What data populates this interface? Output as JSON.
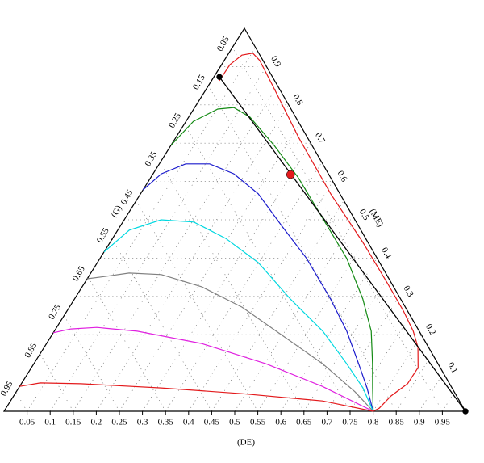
{
  "chart_data": {
    "type": "ternary",
    "axis_labels": {
      "bottom": "(DE)",
      "left": "(G)",
      "right": "(ME)"
    },
    "bottom_ticks": [
      0.05,
      0.1,
      0.15,
      0.2,
      0.25,
      0.3,
      0.35,
      0.4,
      0.45,
      0.5,
      0.55,
      0.6,
      0.65,
      0.7,
      0.75,
      0.8,
      0.85,
      0.9,
      0.95
    ],
    "left_ticks": [
      0.05,
      0.15,
      0.25,
      0.35,
      0.45,
      0.55,
      0.65,
      0.75,
      0.85,
      0.95
    ],
    "right_ticks": [
      0.1,
      0.2,
      0.3,
      0.4,
      0.5,
      0.6,
      0.7,
      0.8,
      0.9
    ],
    "grid": true,
    "series": [
      {
        "color": "#e31a1c",
        "de": [
          0.017,
          0.018,
          0.031,
          0.052,
          0.077,
          0.147,
          0.266,
          0.412,
          0.548,
          0.656,
          0.729,
          0.778,
          0.81,
          0.838,
          0.837,
          0.818,
          0.809,
          0.8
        ],
        "me": [
          0.863,
          0.905,
          0.93,
          0.935,
          0.916,
          0.842,
          0.715,
          0.568,
          0.441,
          0.335,
          0.262,
          0.209,
          0.167,
          0.114,
          0.072,
          0.04,
          0.008,
          0
        ]
      },
      {
        "color": "#138a13",
        "de": [
          0,
          0.016,
          0.052,
          0.085,
          0.133,
          0.224,
          0.32,
          0.428,
          0.535,
          0.625,
          0.687,
          0.734,
          0.767,
          0.8
        ],
        "me": [
          0.694,
          0.757,
          0.789,
          0.793,
          0.768,
          0.694,
          0.61,
          0.504,
          0.399,
          0.293,
          0.209,
          0.124,
          0.061,
          0
        ]
      },
      {
        "color": "#1a1acc",
        "de": [
          0,
          0.018,
          0.057,
          0.109,
          0.175,
          0.255,
          0.351,
          0.448,
          0.555,
          0.634,
          0.704,
          0.755,
          0.8
        ],
        "me": [
          0.578,
          0.62,
          0.646,
          0.646,
          0.62,
          0.568,
          0.483,
          0.399,
          0.293,
          0.209,
          0.124,
          0.061,
          0
        ]
      },
      {
        "color": "#00d8e0",
        "de": [
          0,
          0.025,
          0.08,
          0.154,
          0.246,
          0.349,
          0.468,
          0.582,
          0.678,
          0.746,
          0.8
        ],
        "me": [
          0.416,
          0.473,
          0.5,
          0.494,
          0.451,
          0.388,
          0.293,
          0.209,
          0.124,
          0.061,
          0
        ]
      },
      {
        "color": "#808080",
        "de": [
          0,
          0.035,
          0.083,
          0.155,
          0.259,
          0.374,
          0.5,
          0.626,
          0.734,
          0.8
        ],
        "me": [
          0.346,
          0.352,
          0.361,
          0.357,
          0.325,
          0.272,
          0.198,
          0.124,
          0.051,
          0
        ]
      },
      {
        "color": "#e020e0",
        "de": [
          0,
          0.033,
          0.087,
          0.18,
          0.336,
          0.503,
          0.656,
          0.8
        ],
        "me": [
          0.205,
          0.215,
          0.219,
          0.209,
          0.177,
          0.124,
          0.065,
          0
        ]
      },
      {
        "color": "#e31a1c",
        "de": [
          0,
          0.04,
          0.129,
          0.309,
          0.492,
          0.676,
          0.8
        ],
        "me": [
          0.065,
          0.074,
          0.072,
          0.061,
          0.046,
          0.027,
          0
        ]
      }
    ],
    "tie_line": {
      "color": "#000000",
      "de": [
        0.012,
        1
      ],
      "me": [
        0.873,
        0
      ]
    },
    "points": [
      {
        "color": "#000000",
        "de": 0.012,
        "me": 0.873
      },
      {
        "color": "#e31a1c",
        "de": 0.299,
        "me": 0.618
      },
      {
        "color": "#000000",
        "de": 1,
        "me": 0
      }
    ]
  }
}
